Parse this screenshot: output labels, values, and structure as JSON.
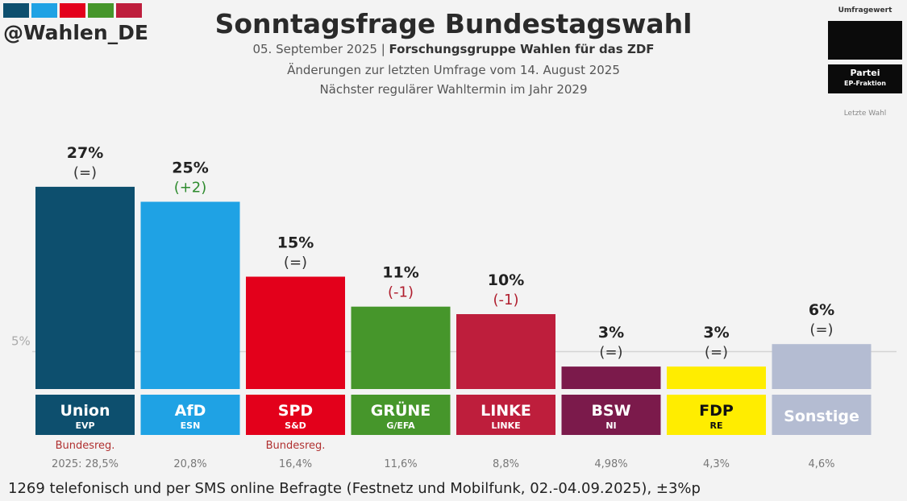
{
  "header": {
    "handle": "@Wahlen_DE",
    "title": "Sonntagsfrage Bundestagswahl",
    "date": "05. September 2025",
    "source": "Forschungsgruppe Wahlen für das ZDF",
    "changes_note": "Änderungen zur letzten Umfrage vom 14. August 2025",
    "next_election": "Nächster regulärer Wahltermin im Jahr 2029",
    "swatch_colors": [
      "#0d4f6e",
      "#1fa2e4",
      "#e3001b",
      "#46962b",
      "#be1e3c"
    ]
  },
  "legend": {
    "top_label": "Umfragewert",
    "party_label": "Partei",
    "ep_label": "EP-Fraktion",
    "bottom_label": "Letzte Wahl"
  },
  "chart_data": {
    "type": "bar",
    "title": "Sonntagsfrage Bundestagswahl",
    "ylim": [
      0,
      30
    ],
    "reference_line": {
      "value": 5,
      "label": "5%"
    },
    "categories": [
      "Union",
      "AfD",
      "SPD",
      "GRÜNE",
      "LINKE",
      "BSW",
      "FDP",
      "Sonstige"
    ],
    "values": [
      27,
      25,
      15,
      11,
      10,
      3,
      3,
      6
    ],
    "value_labels": [
      "27%",
      "25%",
      "15%",
      "11%",
      "10%",
      "3%",
      "3%",
      "6%"
    ],
    "changes": [
      "(=)",
      "(+2)",
      "(=)",
      "(-1)",
      "(-1)",
      "(=)",
      "(=)",
      "(=)"
    ],
    "change_colors": [
      "#333333",
      "#2e8b2e",
      "#333333",
      "#b01e2e",
      "#b01e2e",
      "#333333",
      "#333333",
      "#333333"
    ],
    "ep_groups": [
      "EVP",
      "ESN",
      "S&D",
      "G/EFA",
      "LINKE",
      "NI",
      "RE",
      ""
    ],
    "colors": [
      "#0d4f6e",
      "#1fa2e4",
      "#e3001b",
      "#46962b",
      "#be1e3c",
      "#7b1a4b",
      "#ffed00",
      "#b4bcd2"
    ],
    "label_text_colors": [
      "#ffffff",
      "#ffffff",
      "#ffffff",
      "#ffffff",
      "#ffffff",
      "#ffffff",
      "#111111",
      "#ffffff"
    ],
    "government_tags": [
      "Bundesreg.",
      "",
      "Bundesreg.",
      "",
      "",
      "",
      "",
      ""
    ],
    "last_election": [
      "2025: 28,5%",
      "20,8%",
      "16,4%",
      "11,6%",
      "8,8%",
      "4,98%",
      "4,3%",
      "4,6%"
    ]
  },
  "footnote": "1269 telefonisch und per SMS online Befragte (Festnetz und Mobilfunk, 02.-04.09.2025), ±3%p"
}
